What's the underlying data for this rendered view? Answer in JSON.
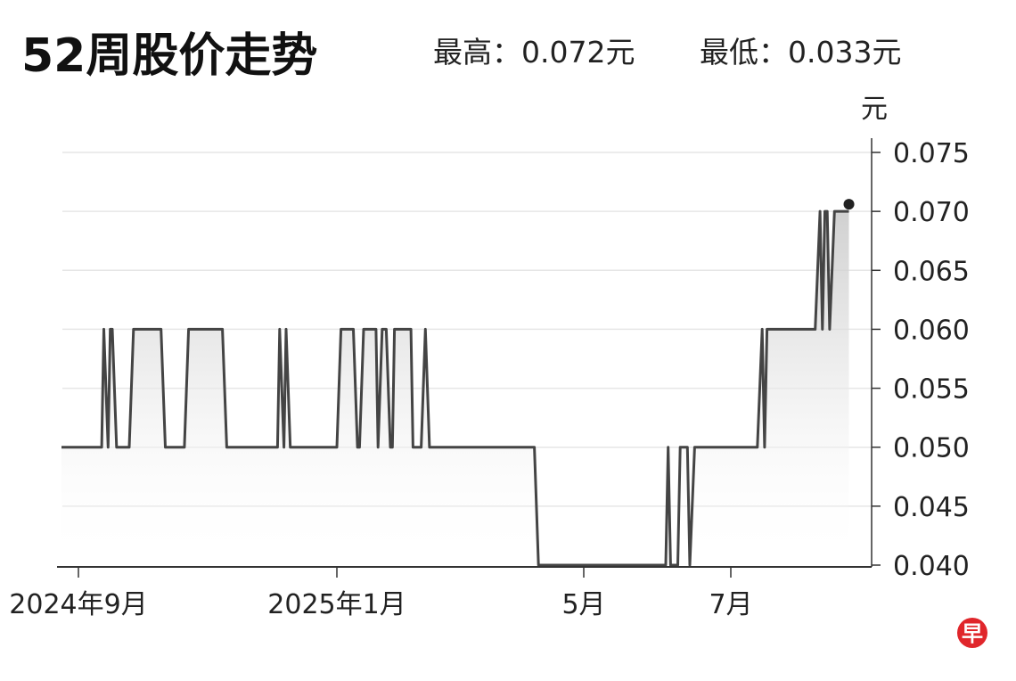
{
  "header": {
    "title": "52周股价走势",
    "high_label": "最高：0.072元",
    "low_label": "最低：0.033元"
  },
  "logo_text": "早",
  "colors": {
    "line": "#444444",
    "grid": "#e6e6e6",
    "logo": "#e0262b"
  },
  "chart_data": {
    "type": "line",
    "title": "52周股价走势",
    "ylabel": "元",
    "ylim": [
      0.04,
      0.075
    ],
    "yticks": [
      "0.075",
      "0.070",
      "0.065",
      "0.060",
      "0.055",
      "0.050",
      "0.045",
      "0.040"
    ],
    "xticks": [
      {
        "date": "2024-09-01",
        "label": "2024年9月"
      },
      {
        "date": "2025-01-01",
        "label": "2025年1月"
      },
      {
        "date": "2025-05-01",
        "label": "5月"
      },
      {
        "date": "2025-07-01",
        "label": "7月"
      }
    ],
    "grid": true,
    "fill": "gradient area",
    "last_point_marker": true,
    "points": [
      [
        "2024-08-24",
        0.05
      ],
      [
        "2024-09-12",
        0.05
      ],
      [
        "2024-09-13",
        0.06
      ],
      [
        "2024-09-15",
        0.05
      ],
      [
        "2024-09-16",
        0.06
      ],
      [
        "2024-09-17",
        0.06
      ],
      [
        "2024-09-19",
        0.05
      ],
      [
        "2024-09-25",
        0.05
      ],
      [
        "2024-09-27",
        0.06
      ],
      [
        "2024-10-10",
        0.06
      ],
      [
        "2024-10-12",
        0.05
      ],
      [
        "2024-10-21",
        0.05
      ],
      [
        "2024-10-23",
        0.06
      ],
      [
        "2024-11-08",
        0.06
      ],
      [
        "2024-11-10",
        0.05
      ],
      [
        "2024-12-04",
        0.05
      ],
      [
        "2024-12-05",
        0.06
      ],
      [
        "2024-12-07",
        0.05
      ],
      [
        "2024-12-08",
        0.06
      ],
      [
        "2024-12-10",
        0.05
      ],
      [
        "2025-01-01",
        0.05
      ],
      [
        "2025-01-03",
        0.06
      ],
      [
        "2025-01-09",
        0.06
      ],
      [
        "2025-01-11",
        0.05
      ],
      [
        "2025-01-12",
        0.05
      ],
      [
        "2025-01-14",
        0.06
      ],
      [
        "2025-01-20",
        0.06
      ],
      [
        "2025-01-21",
        0.05
      ],
      [
        "2025-01-23",
        0.06
      ],
      [
        "2025-01-25",
        0.06
      ],
      [
        "2025-01-27",
        0.05
      ],
      [
        "2025-01-28",
        0.05
      ],
      [
        "2025-01-29",
        0.06
      ],
      [
        "2025-02-06",
        0.06
      ],
      [
        "2025-02-07",
        0.05
      ],
      [
        "2025-02-11",
        0.05
      ],
      [
        "2025-02-13",
        0.06
      ],
      [
        "2025-02-15",
        0.05
      ],
      [
        "2025-04-07",
        0.05
      ],
      [
        "2025-04-09",
        0.04
      ],
      [
        "2025-06-04",
        0.04
      ],
      [
        "2025-06-05",
        0.05
      ],
      [
        "2025-06-06",
        0.04
      ],
      [
        "2025-06-09",
        0.04
      ],
      [
        "2025-06-10",
        0.05
      ],
      [
        "2025-06-13",
        0.05
      ],
      [
        "2025-06-14",
        0.04
      ],
      [
        "2025-06-16",
        0.05
      ],
      [
        "2025-07-12",
        0.05
      ],
      [
        "2025-07-14",
        0.06
      ],
      [
        "2025-07-15",
        0.05
      ],
      [
        "2025-07-16",
        0.06
      ],
      [
        "2025-08-05",
        0.06
      ],
      [
        "2025-08-07",
        0.07
      ],
      [
        "2025-08-08",
        0.06
      ],
      [
        "2025-08-09",
        0.07
      ],
      [
        "2025-08-10",
        0.07
      ],
      [
        "2025-08-11",
        0.06
      ],
      [
        "2025-08-13",
        0.07
      ],
      [
        "2025-08-19",
        0.07
      ]
    ]
  }
}
